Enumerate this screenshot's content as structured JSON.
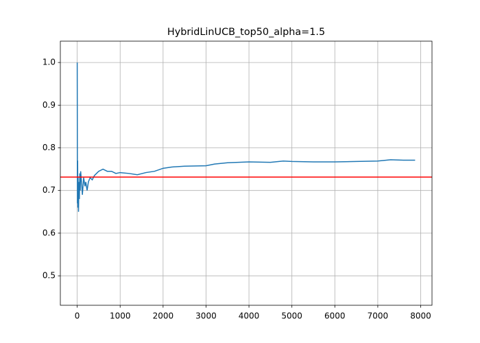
{
  "chart_data": {
    "type": "line",
    "title": "HybridLinUCB_top50_alpha=1.5",
    "x": [
      0,
      5,
      10,
      15,
      20,
      30,
      40,
      50,
      60,
      70,
      80,
      100,
      120,
      150,
      180,
      200,
      230,
      260,
      300,
      350,
      400,
      450,
      500,
      600,
      700,
      800,
      900,
      1000,
      1200,
      1400,
      1600,
      1800,
      2000,
      2200,
      2500,
      3000,
      3200,
      3500,
      4000,
      4500,
      4800,
      5000,
      5500,
      6000,
      6500,
      7000,
      7300,
      7600,
      7870
    ],
    "series": [
      {
        "color": "#1f77b4",
        "values": [
          1.0,
          0.67,
          0.77,
          0.66,
          0.73,
          0.65,
          0.72,
          0.68,
          0.74,
          0.7,
          0.745,
          0.72,
          0.69,
          0.73,
          0.71,
          0.72,
          0.7,
          0.72,
          0.73,
          0.725,
          0.735,
          0.74,
          0.745,
          0.75,
          0.745,
          0.745,
          0.74,
          0.742,
          0.74,
          0.737,
          0.742,
          0.745,
          0.752,
          0.755,
          0.757,
          0.758,
          0.762,
          0.765,
          0.767,
          0.766,
          0.769,
          0.768,
          0.767,
          0.767,
          0.768,
          0.769,
          0.772,
          0.771,
          0.771
        ]
      }
    ],
    "reference_line": {
      "value": 0.7315,
      "color": "#ff0000"
    },
    "xlim": [
      -393,
      8263
    ],
    "ylim": [
      0.431,
      1.05
    ],
    "xticks": [
      0,
      1000,
      2000,
      3000,
      4000,
      5000,
      6000,
      7000,
      8000
    ],
    "yticks": [
      0.5,
      0.6,
      0.7,
      0.8,
      0.9,
      {
        "value": 1,
        "label": "1.0"
      }
    ],
    "grid": true
  }
}
